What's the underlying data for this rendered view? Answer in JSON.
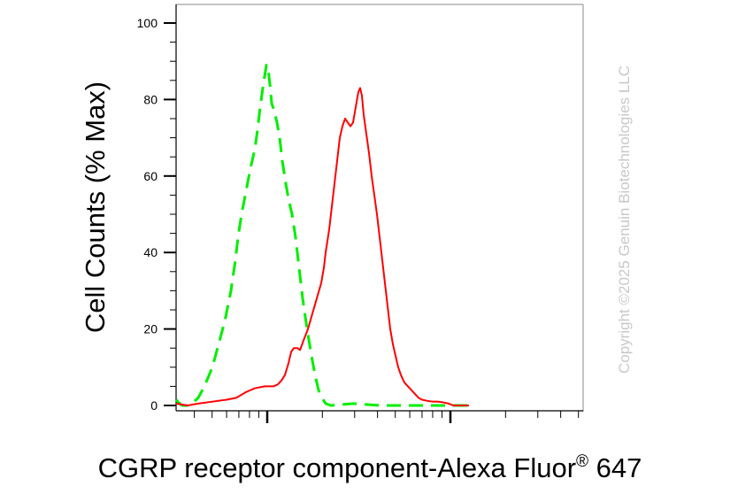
{
  "chart_data": {
    "type": "line",
    "title": "",
    "xlabel": "CGRP receptor component-Alexa Fluor",
    "xlabel_superscript": "®",
    "xlabel_suffix": " 647",
    "ylabel": "Cell Counts (% Max)",
    "ylim": [
      0,
      100
    ],
    "x_scale": "log",
    "x_tick_labels": [],
    "y_ticks": [
      0,
      20,
      40,
      60,
      80,
      100
    ],
    "grid": false,
    "legend": "none",
    "series": [
      {
        "style": "dashed",
        "color": "#00ee00",
        "points": [
          [
            0,
            1.5
          ],
          [
            4,
            0.5
          ],
          [
            7,
            0
          ],
          [
            13,
            0
          ],
          [
            18,
            0.5
          ],
          [
            25,
            2
          ],
          [
            32,
            5
          ],
          [
            41,
            10
          ],
          [
            48,
            16
          ],
          [
            55,
            22
          ],
          [
            62,
            30
          ],
          [
            67,
            38
          ],
          [
            70,
            44
          ],
          [
            74,
            50
          ],
          [
            79,
            56
          ],
          [
            84,
            62
          ],
          [
            89,
            67
          ],
          [
            92,
            72
          ],
          [
            95,
            78
          ],
          [
            98,
            83
          ],
          [
            100,
            86
          ],
          [
            102,
            89
          ],
          [
            104,
            88
          ],
          [
            106,
            84
          ],
          [
            108,
            79
          ],
          [
            111,
            77
          ],
          [
            114,
            74
          ],
          [
            117,
            70
          ],
          [
            120,
            64
          ],
          [
            124,
            58
          ],
          [
            127,
            54
          ],
          [
            131,
            50
          ],
          [
            135,
            44
          ],
          [
            139,
            36
          ],
          [
            143,
            28
          ],
          [
            148,
            20
          ],
          [
            153,
            13
          ],
          [
            157,
            8
          ],
          [
            161,
            4
          ],
          [
            165,
            2
          ],
          [
            169,
            0.5
          ],
          [
            175,
            0
          ],
          [
            200,
            0.5
          ],
          [
            230,
            0
          ],
          [
            270,
            0
          ],
          [
            300,
            0
          ],
          [
            331,
            0
          ]
        ]
      },
      {
        "style": "solid",
        "color": "#ff0000",
        "points": [
          [
            0,
            0.5
          ],
          [
            13,
            0
          ],
          [
            25,
            0.5
          ],
          [
            41,
            1
          ],
          [
            57,
            1.5
          ],
          [
            68,
            2
          ],
          [
            79,
            3.5
          ],
          [
            89,
            4.5
          ],
          [
            100,
            5
          ],
          [
            110,
            5
          ],
          [
            115,
            5.5
          ],
          [
            119,
            6.5
          ],
          [
            123,
            8
          ],
          [
            127,
            11
          ],
          [
            130,
            14
          ],
          [
            133,
            15
          ],
          [
            137,
            15
          ],
          [
            140,
            14.5
          ],
          [
            144,
            17
          ],
          [
            149,
            20
          ],
          [
            154,
            24
          ],
          [
            159,
            28
          ],
          [
            164,
            32
          ],
          [
            167,
            36
          ],
          [
            169,
            40
          ],
          [
            173,
            46
          ],
          [
            176,
            52
          ],
          [
            179,
            58
          ],
          [
            182,
            64
          ],
          [
            185,
            70
          ],
          [
            188,
            73
          ],
          [
            191,
            75
          ],
          [
            194,
            74
          ],
          [
            197,
            73
          ],
          [
            200,
            74
          ],
          [
            203,
            78
          ],
          [
            206,
            82
          ],
          [
            208,
            83
          ],
          [
            210,
            81
          ],
          [
            212,
            76
          ],
          [
            215,
            71
          ],
          [
            218,
            66
          ],
          [
            221,
            60
          ],
          [
            224,
            55
          ],
          [
            227,
            50
          ],
          [
            230,
            44
          ],
          [
            233,
            38
          ],
          [
            236,
            32
          ],
          [
            239,
            26
          ],
          [
            242,
            20
          ],
          [
            245,
            16
          ],
          [
            248,
            13
          ],
          [
            251,
            10
          ],
          [
            254,
            8
          ],
          [
            258,
            6
          ],
          [
            262,
            5
          ],
          [
            266,
            4
          ],
          [
            270,
            3
          ],
          [
            274,
            2
          ],
          [
            278,
            1.5
          ],
          [
            284,
            1.2
          ],
          [
            290,
            1
          ],
          [
            296,
            1
          ],
          [
            302,
            0.8
          ],
          [
            308,
            0.5
          ],
          [
            313,
            0
          ],
          [
            320,
            0
          ],
          [
            331,
            0
          ]
        ]
      }
    ]
  },
  "watermark": "Copyright ©2025 Genuin Biotechnologies LLC",
  "colors": {
    "axis": "#000000",
    "watermark": "#c8c8c8"
  }
}
